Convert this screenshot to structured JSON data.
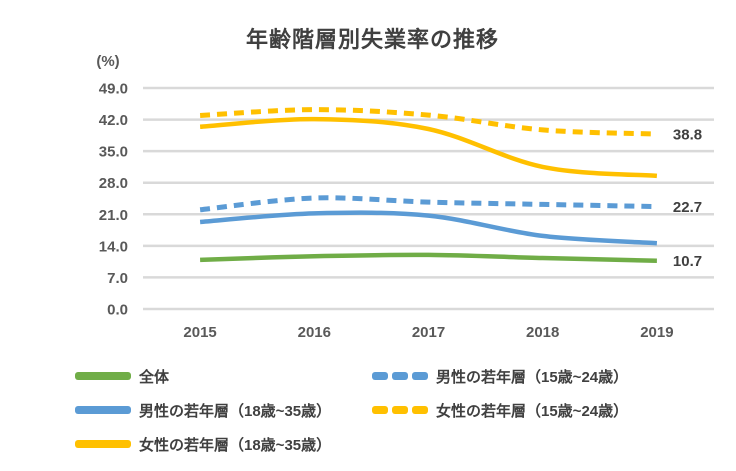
{
  "title": "年齢階層別失業率の推移",
  "colors": {
    "background": "#FFFFFF",
    "gridline": "#D9D9D9",
    "axis_text": "#595959",
    "title_text": "#404040",
    "data_label_text": "#404040",
    "green": "#70AD47",
    "blue": "#5B9BD5",
    "gold": "#FFC000"
  },
  "chart_data": {
    "type": "line",
    "title": "年齢階層別失業率の推移",
    "y_unit_label": "(%)",
    "categories": [
      "2015",
      "2016",
      "2017",
      "2018",
      "2019"
    ],
    "ylim": [
      0,
      49
    ],
    "y_tick_step": 7,
    "y_tick_labels": [
      "0.0",
      "7.0",
      "14.0",
      "21.0",
      "28.0",
      "35.0",
      "42.0",
      "49.0"
    ],
    "grid": true,
    "legend_position": "bottom",
    "series": [
      {
        "slug": "overall",
        "name": "全体",
        "values": [
          10.9,
          11.7,
          12.0,
          11.3,
          10.7
        ],
        "color": "#70AD47",
        "dashed": false,
        "end_label": "10.7"
      },
      {
        "slug": "male-young-18-35",
        "name": "男性の若年層（18歳~35歳）",
        "values": [
          19.3,
          21.2,
          20.7,
          16.2,
          14.6
        ],
        "color": "#5B9BD5",
        "dashed": false,
        "end_label": null
      },
      {
        "slug": "female-young-18-35",
        "name": "女性の若年層（18歳~35歳）",
        "values": [
          40.4,
          42.1,
          39.9,
          31.5,
          29.5
        ],
        "color": "#FFC000",
        "dashed": false,
        "end_label": null
      },
      {
        "slug": "male-young-15-24",
        "name": "男性の若年層（15歳~24歳）",
        "values": [
          22.0,
          24.6,
          23.7,
          23.2,
          22.7
        ],
        "color": "#5B9BD5",
        "dashed": true,
        "end_label": "22.7"
      },
      {
        "slug": "female-young-15-24",
        "name": "女性の若年層（15歳~24歳）",
        "values": [
          42.9,
          44.2,
          43.0,
          39.7,
          38.8
        ],
        "color": "#FFC000",
        "dashed": true,
        "end_label": "38.8"
      }
    ]
  },
  "legend": {
    "items": [
      {
        "slug": "overall",
        "label": "全体",
        "color": "#70AD47",
        "dashed": false,
        "col": 0,
        "row": 0
      },
      {
        "slug": "male-young-18-35",
        "label": "男性の若年層（18歳~35歳）",
        "color": "#5B9BD5",
        "dashed": false,
        "col": 0,
        "row": 1
      },
      {
        "slug": "female-young-18-35",
        "label": "女性の若年層（18歳~35歳）",
        "color": "#FFC000",
        "dashed": false,
        "col": 0,
        "row": 2
      },
      {
        "slug": "male-young-15-24",
        "label": "男性の若年層（15歳~24歳）",
        "color": "#5B9BD5",
        "dashed": true,
        "col": 1,
        "row": 0
      },
      {
        "slug": "female-young-15-24",
        "label": "女性の若年層（15歳~24歳）",
        "color": "#FFC000",
        "dashed": true,
        "col": 1,
        "row": 1
      }
    ]
  }
}
